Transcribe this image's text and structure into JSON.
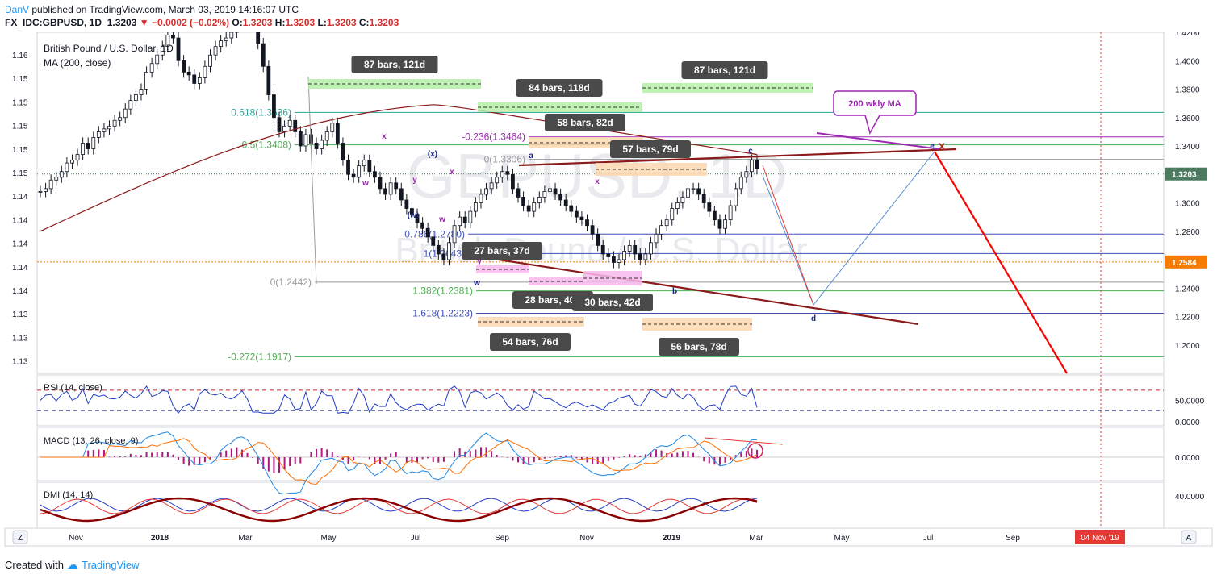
{
  "header": {
    "user": "DanV",
    "published_text": "published on TradingView.com, March 03, 2019 14:16:07 UTC",
    "symbol": "FX_IDC:GBPUSD, 1D",
    "last": "1.3203",
    "change": "−0.0002 (−0.02%)",
    "open_label": "O:",
    "open": "1.3203",
    "high_label": "H:",
    "high": "1.3203",
    "low_label": "L:",
    "low": "1.3203",
    "close_label": "C:",
    "close": "1.3203"
  },
  "footer": {
    "created_with": "Created with",
    "brand": "TradingView"
  },
  "colors": {
    "accent": "#2196f3",
    "candle": "#131722",
    "ma": "#8b1a1a",
    "fib_green": "#4caf50",
    "fib_teal": "#26a69a",
    "fib_blue": "#3f51b5",
    "purple": "#9c27b0",
    "red": "#ff0000",
    "price_tag": "#4c7a5f",
    "level_tag": "#f57c00"
  },
  "chart_data": [
    {
      "type": "candlestick",
      "title": "British Pound / U.S. Dollar, 1D",
      "indicator": "MA (200, close)",
      "watermark_symbol": "GBPUSD, 1D",
      "watermark_name": "British Pound / U.S. Dollar",
      "x_ticks": [
        "Nov",
        "2018",
        "Mar",
        "May",
        "Jul",
        "Sep",
        "Nov",
        "2019",
        "Mar",
        "May",
        "Jul",
        "Sep"
      ],
      "right_axis": [
        "1.4200",
        "1.4000",
        "1.3800",
        "1.3600",
        "1.3400",
        "1.3200",
        "1.3000",
        "1.2800",
        "1.2600",
        "1.2400",
        "1.2200",
        "1.2000"
      ],
      "left_axis": [
        "1.16",
        "1.15",
        "1.15",
        "1.15",
        "1.15",
        "1.15",
        "1.14",
        "1.14",
        "1.14",
        "1.14",
        "1.14",
        "1.13",
        "1.13",
        "1.13"
      ],
      "ylim": [
        1.18,
        1.42
      ],
      "last_price_tag": "1.3203",
      "level_tag": "1.2584",
      "date_tag": "04 Nov '19",
      "fib_levels": [
        {
          "label": "0.618(1.3636)",
          "value": 1.3636
        },
        {
          "label": "0.5(1.3408)",
          "value": 1.3408
        },
        {
          "label": "-0.236(1.3464)",
          "value": 1.3464
        },
        {
          "label": "0(1.3306)",
          "value": 1.3306
        },
        {
          "label": "0.786(1.2780)",
          "value": 1.278
        },
        {
          "label": "1(1.2643)",
          "value": 1.2643
        },
        {
          "label": "0(1.2442)",
          "value": 1.2442
        },
        {
          "label": "1.382(1.2381)",
          "value": 1.2381
        },
        {
          "label": "1.618(1.2223)",
          "value": 1.2223
        },
        {
          "label": "-0.272(1.1917)",
          "value": 1.1917
        }
      ],
      "range_labels": [
        "87 bars, 121d",
        "84 bars, 118d",
        "87 bars, 121d",
        "58 bars, 82d",
        "57 bars, 79d",
        "27 bars, 37d",
        "28 bars, 40d",
        "30 bars, 42d",
        "54 bars, 76d",
        "56 bars, 78d"
      ],
      "wave_labels": [
        "a",
        "b",
        "c",
        "d",
        "e",
        "x",
        "x",
        "x",
        "w",
        "w",
        "w",
        "y",
        "y",
        "(x)",
        "(w)"
      ],
      "annotation": "200 wkly MA",
      "close_series": [
        1.308,
        1.31,
        1.316,
        1.318,
        1.322,
        1.328,
        1.33,
        1.334,
        1.342,
        1.338,
        1.346,
        1.35,
        1.352,
        1.354,
        1.358,
        1.36,
        1.366,
        1.372,
        1.376,
        1.38,
        1.392,
        1.398,
        1.404,
        1.41,
        1.418,
        1.416,
        1.4,
        1.392,
        1.39,
        1.384,
        1.388,
        1.396,
        1.404,
        1.41,
        1.414,
        1.416,
        1.42,
        1.424,
        1.43,
        1.432,
        1.424,
        1.412,
        1.396,
        1.376,
        1.36,
        1.35,
        1.354,
        1.358,
        1.35,
        1.34,
        1.348,
        1.342,
        1.338,
        1.344,
        1.35,
        1.356,
        1.342,
        1.33,
        1.32,
        1.318,
        1.326,
        1.33,
        1.322,
        1.318,
        1.31,
        1.306,
        1.314,
        1.31,
        1.302,
        1.296,
        1.292,
        1.286,
        1.282,
        1.276,
        1.27,
        1.264,
        1.26,
        1.272,
        1.284,
        1.29,
        1.286,
        1.294,
        1.3,
        1.306,
        1.31,
        1.314,
        1.318,
        1.322,
        1.32,
        1.31,
        1.304,
        1.298,
        1.294,
        1.3,
        1.304,
        1.308,
        1.31,
        1.306,
        1.302,
        1.298,
        1.294,
        1.29,
        1.288,
        1.284,
        1.278,
        1.27,
        1.264,
        1.262,
        1.258,
        1.26,
        1.266,
        1.27,
        1.264,
        1.26,
        1.264,
        1.272,
        1.278,
        1.284,
        1.288,
        1.296,
        1.3,
        1.304,
        1.31,
        1.31,
        1.306,
        1.3,
        1.294,
        1.288,
        1.282,
        1.288,
        1.298,
        1.31,
        1.318,
        1.322,
        1.33,
        1.324
      ],
      "rsi": {
        "label": "RSI (14, close)",
        "axis": [
          "50.0000",
          "0.0000"
        ],
        "ylim": [
          0,
          100
        ],
        "levels": [
          70,
          30
        ]
      },
      "macd": {
        "label": "MACD (13, 26, close, 9)",
        "axis": [
          "0.0000"
        ]
      },
      "dmi": {
        "label": "DMI (14, 14)",
        "axis": [
          "40.0000"
        ]
      }
    }
  ]
}
